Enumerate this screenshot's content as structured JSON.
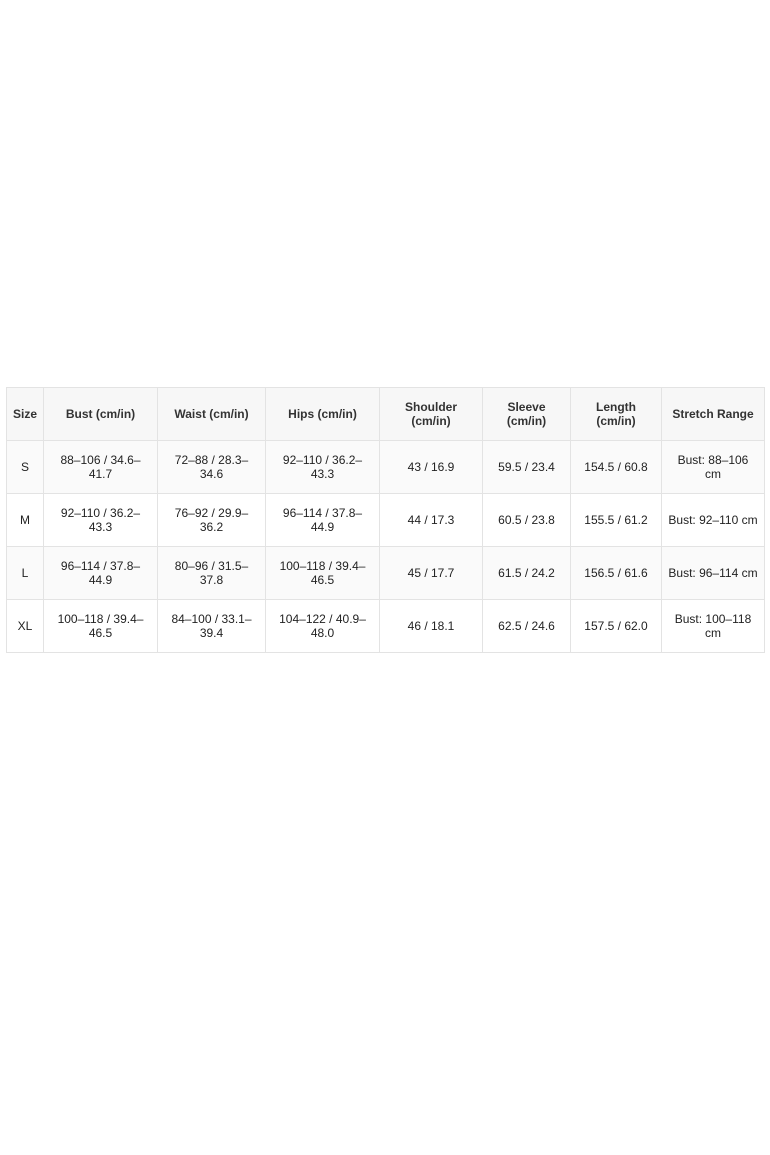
{
  "table": {
    "headers": [
      "Size",
      "Bust (cm/in)",
      "Waist (cm/in)",
      "Hips (cm/in)",
      "Shoulder (cm/in)",
      "Sleeve (cm/in)",
      "Length (cm/in)",
      "Stretch Range"
    ],
    "rows": [
      [
        "S",
        "88–106 / 34.6–41.7",
        "72–88 / 28.3–34.6",
        "92–110 / 36.2–43.3",
        "43 / 16.9",
        "59.5 / 23.4",
        "154.5 / 60.8",
        "Bust: 88–106 cm"
      ],
      [
        "M",
        "92–110 / 36.2–43.3",
        "76–92 / 29.9–36.2",
        "96–114 / 37.8–44.9",
        "44 / 17.3",
        "60.5 / 23.8",
        "155.5 / 61.2",
        "Bust: 92–110 cm"
      ],
      [
        "L",
        "96–114 / 37.8–44.9",
        "80–96 / 31.5–37.8",
        "100–118 / 39.4–46.5",
        "45 / 17.7",
        "61.5 / 24.2",
        "156.5 / 61.6",
        "Bust: 96–114 cm"
      ],
      [
        "XL",
        "100–118 / 39.4–46.5",
        "84–100 / 33.1–39.4",
        "104–122 / 40.9–48.0",
        "46 / 18.1",
        "62.5 / 24.6",
        "157.5 / 62.0",
        "Bust: 100–118 cm"
      ]
    ]
  }
}
